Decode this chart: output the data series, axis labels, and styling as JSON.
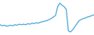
{
  "values": [
    20,
    18,
    19,
    17,
    18,
    19,
    18,
    20,
    19,
    21,
    20,
    21,
    20,
    22,
    21,
    23,
    22,
    24,
    23,
    25,
    26,
    27,
    28,
    30,
    32,
    35,
    38,
    55,
    62,
    58,
    55,
    50,
    8,
    6,
    10,
    16,
    22,
    28,
    30,
    32,
    33,
    35,
    36,
    38,
    39
  ],
  "line_color": "#4aa8d8",
  "background_color": "#ffffff",
  "ylim_min": 0,
  "ylim_max": 68
}
